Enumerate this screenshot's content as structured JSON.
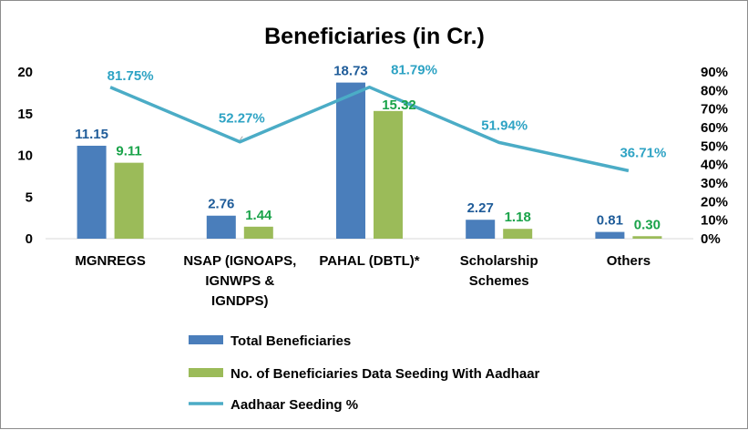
{
  "chart_data": {
    "type": "bar",
    "title": "Beneficiaries (in Cr.)",
    "categories": [
      [
        "MGNREGS"
      ],
      [
        "NSAP (IGNOAPS,",
        "IGNWPS &",
        "IGNDPS)"
      ],
      [
        "PAHAL (DBTL)*"
      ],
      [
        "Scholarship",
        "Schemes"
      ],
      [
        "Others"
      ]
    ],
    "series": [
      {
        "name": "Total Beneficiaries",
        "kind": "bar",
        "axis": "left",
        "color": "#4a7ebb",
        "label_color": "#1f5c99",
        "values": [
          11.15,
          2.76,
          18.73,
          2.27,
          0.81
        ],
        "labels": [
          "11.15",
          "2.76",
          "18.73",
          "2.27",
          "0.81"
        ]
      },
      {
        "name": "No. of Beneficiaries Data Seeding With Aadhaar",
        "kind": "bar",
        "axis": "left",
        "color": "#9bbb59",
        "label_color": "#1aa34a",
        "values": [
          9.11,
          1.44,
          15.32,
          1.18,
          0.3
        ],
        "labels": [
          "9.11",
          "1.44",
          "15.32",
          "1.18",
          "0.30"
        ]
      },
      {
        "name": "Aadhaar Seeding %",
        "kind": "line",
        "axis": "right",
        "color": "#4bacc6",
        "label_color": "#2ea3c4",
        "values": [
          81.75,
          52.27,
          81.79,
          51.94,
          36.71
        ],
        "labels": [
          "81.75%",
          "52.27%",
          "81.79%",
          "51.94%",
          "36.71%"
        ]
      }
    ],
    "y_left": {
      "range": [
        0,
        20
      ],
      "ticks": [
        "0",
        "5",
        "10",
        "15",
        "20"
      ]
    },
    "y_right": {
      "range": [
        0,
        90
      ],
      "ticks": [
        "0%",
        "10%",
        "20%",
        "30%",
        "40%",
        "50%",
        "60%",
        "70%",
        "80%",
        "90%"
      ]
    },
    "legend_position": "bottom",
    "grid": false
  }
}
